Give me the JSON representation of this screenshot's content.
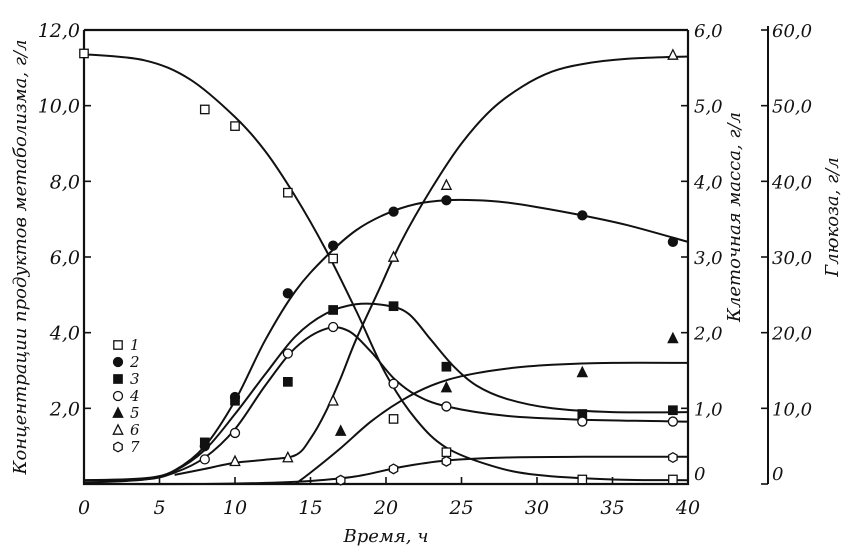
{
  "chart_data": {
    "type": "line",
    "title": "",
    "xlabel": "Время, ч",
    "xlim": [
      0,
      40
    ],
    "x_ticks": [
      0,
      5,
      10,
      15,
      20,
      25,
      30,
      35,
      40
    ],
    "x_tick_labels": [
      "0",
      "5",
      "10",
      "15",
      "20",
      "25",
      "30",
      "35",
      "40"
    ],
    "y_left": {
      "label": "Концентрации продуктов метаболизма, г/л",
      "ylim": [
        0,
        12
      ],
      "ticks": [
        2,
        4,
        6,
        8,
        10,
        12
      ],
      "tick_labels": [
        "2,0",
        "4,0",
        "6,0",
        "8,0",
        "10,0",
        "12,0"
      ]
    },
    "y_mid": {
      "label": "Клеточная масса, г/л",
      "ylim": [
        0,
        6
      ],
      "ticks": [
        0,
        1,
        2,
        3,
        4,
        5,
        6
      ],
      "tick_labels": [
        "0",
        "1,0",
        "2,0",
        "3,0",
        "4,0",
        "5,0",
        "6,0"
      ]
    },
    "y_right": {
      "label": "Глюкоза, г/л",
      "ylim": [
        0,
        60
      ],
      "ticks": [
        0,
        10,
        20,
        30,
        40,
        50,
        60
      ],
      "tick_labels": [
        "0",
        "10,0",
        "20,0",
        "30,0",
        "40,0",
        "50,0",
        "60,0"
      ]
    },
    "grid": false,
    "legend_position": "left-middle",
    "series": [
      {
        "name": "1",
        "marker": "square-open",
        "axis": "right",
        "points": [
          [
            0,
            56.9
          ],
          [
            8,
            49.5
          ],
          [
            10,
            47.3
          ],
          [
            13.5,
            38.5
          ],
          [
            16.5,
            29.8
          ],
          [
            20.5,
            8.6
          ],
          [
            24,
            4.2
          ],
          [
            33,
            0.6
          ],
          [
            39,
            0.6
          ]
        ],
        "curve": [
          [
            0,
            56.8
          ],
          [
            4,
            56.0
          ],
          [
            7,
            53.5
          ],
          [
            10,
            48.5
          ],
          [
            12,
            44
          ],
          [
            14,
            38
          ],
          [
            16,
            31
          ],
          [
            18,
            23
          ],
          [
            20,
            14.5
          ],
          [
            22,
            8.5
          ],
          [
            24,
            4.8
          ],
          [
            27,
            2.4
          ],
          [
            30,
            1.2
          ],
          [
            35,
            0.6
          ],
          [
            40,
            0.5
          ]
        ]
      },
      {
        "name": "2",
        "marker": "circle-filled",
        "axis": "mid",
        "points": [
          [
            8,
            0.5
          ],
          [
            10,
            1.15
          ],
          [
            13.5,
            2.52
          ],
          [
            16.5,
            3.15
          ],
          [
            20.5,
            3.6
          ],
          [
            24,
            3.75
          ],
          [
            33,
            3.55
          ],
          [
            39,
            3.2
          ]
        ],
        "curve": [
          [
            0,
            0.02
          ],
          [
            4,
            0.06
          ],
          [
            6,
            0.18
          ],
          [
            8,
            0.5
          ],
          [
            10,
            1.1
          ],
          [
            12,
            1.9
          ],
          [
            14,
            2.55
          ],
          [
            16,
            3.0
          ],
          [
            18,
            3.35
          ],
          [
            20,
            3.57
          ],
          [
            22,
            3.7
          ],
          [
            24,
            3.75
          ],
          [
            26,
            3.75
          ],
          [
            28,
            3.72
          ],
          [
            30,
            3.66
          ],
          [
            33,
            3.55
          ],
          [
            36,
            3.42
          ],
          [
            40,
            3.2
          ]
        ]
      },
      {
        "name": "3",
        "marker": "square-filled",
        "axis": "left",
        "points": [
          [
            8,
            1.1
          ],
          [
            10,
            2.2
          ],
          [
            13.5,
            2.7
          ],
          [
            16.5,
            4.6
          ],
          [
            20.5,
            4.7
          ],
          [
            24,
            3.1
          ],
          [
            33,
            1.85
          ],
          [
            39,
            1.95
          ]
        ],
        "curve": [
          [
            0,
            0.1
          ],
          [
            4,
            0.15
          ],
          [
            6,
            0.35
          ],
          [
            8,
            0.9
          ],
          [
            10,
            1.85
          ],
          [
            12,
            2.9
          ],
          [
            14,
            3.9
          ],
          [
            16,
            4.5
          ],
          [
            18,
            4.75
          ],
          [
            20,
            4.72
          ],
          [
            21.5,
            4.5
          ],
          [
            23,
            3.8
          ],
          [
            24.5,
            3.1
          ],
          [
            26,
            2.6
          ],
          [
            28,
            2.25
          ],
          [
            31,
            2.0
          ],
          [
            35,
            1.9
          ],
          [
            40,
            1.9
          ]
        ]
      },
      {
        "name": "4",
        "marker": "circle-open",
        "axis": "left",
        "points": [
          [
            8,
            0.65
          ],
          [
            10,
            1.35
          ],
          [
            13.5,
            3.45
          ],
          [
            16.5,
            4.15
          ],
          [
            20.5,
            2.65
          ],
          [
            24,
            2.05
          ],
          [
            33,
            1.65
          ],
          [
            39,
            1.65
          ]
        ],
        "curve": [
          [
            0,
            0.1
          ],
          [
            4,
            0.12
          ],
          [
            6,
            0.3
          ],
          [
            8,
            0.7
          ],
          [
            10,
            1.45
          ],
          [
            12,
            2.6
          ],
          [
            14,
            3.6
          ],
          [
            16,
            4.1
          ],
          [
            17.5,
            4.05
          ],
          [
            19,
            3.5
          ],
          [
            20.5,
            2.8
          ],
          [
            22,
            2.35
          ],
          [
            24,
            2.05
          ],
          [
            28,
            1.8
          ],
          [
            33,
            1.7
          ],
          [
            40,
            1.65
          ]
        ]
      },
      {
        "name": "5",
        "marker": "triangle-filled",
        "axis": "left",
        "points": [
          [
            17,
            1.4
          ],
          [
            24,
            2.55
          ],
          [
            33,
            2.95
          ],
          [
            39,
            3.85
          ]
        ],
        "curve": [
          [
            14,
            0.0
          ],
          [
            15,
            0.3
          ],
          [
            17,
            0.95
          ],
          [
            19,
            1.65
          ],
          [
            21,
            2.2
          ],
          [
            23,
            2.6
          ],
          [
            25,
            2.85
          ],
          [
            28,
            3.05
          ],
          [
            31,
            3.15
          ],
          [
            35,
            3.2
          ],
          [
            40,
            3.2
          ]
        ]
      },
      {
        "name": "6",
        "marker": "triangle-open",
        "axis": "mid",
        "points": [
          [
            10,
            0.3
          ],
          [
            13.5,
            0.35
          ],
          [
            16.5,
            1.1
          ],
          [
            20.5,
            3.0
          ],
          [
            24,
            3.95
          ],
          [
            39,
            5.67
          ]
        ],
        "curve": [
          [
            6,
            0.12
          ],
          [
            8,
            0.2
          ],
          [
            10,
            0.28
          ],
          [
            12,
            0.32
          ],
          [
            14,
            0.38
          ],
          [
            15,
            0.6
          ],
          [
            16,
            0.95
          ],
          [
            17,
            1.4
          ],
          [
            18,
            1.9
          ],
          [
            19.5,
            2.55
          ],
          [
            21,
            3.2
          ],
          [
            23,
            3.9
          ],
          [
            25,
            4.5
          ],
          [
            27,
            4.95
          ],
          [
            29,
            5.25
          ],
          [
            31,
            5.45
          ],
          [
            33,
            5.55
          ],
          [
            36,
            5.62
          ],
          [
            40,
            5.65
          ]
        ]
      },
      {
        "name": "7",
        "marker": "hexagon-open",
        "axis": "left",
        "points": [
          [
            17,
            0.1
          ],
          [
            20.5,
            0.4
          ],
          [
            24,
            0.6
          ],
          [
            39,
            0.7
          ]
        ],
        "curve": [
          [
            0,
            0.0
          ],
          [
            8,
            0.0
          ],
          [
            12,
            0.03
          ],
          [
            15,
            0.08
          ],
          [
            18,
            0.2
          ],
          [
            21,
            0.45
          ],
          [
            24,
            0.62
          ],
          [
            28,
            0.7
          ],
          [
            33,
            0.72
          ],
          [
            40,
            0.72
          ]
        ]
      }
    ]
  }
}
